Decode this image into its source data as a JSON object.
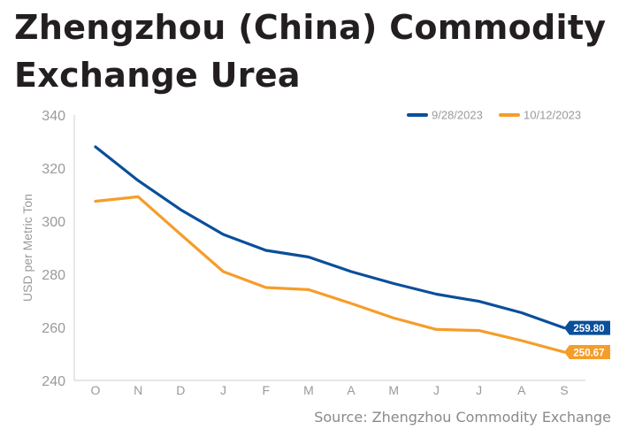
{
  "title": "Zhengzhou (China) Commodity Exchange Urea",
  "source": "Source: Zhengzhou Commodity Exchange",
  "colors": {
    "series_1": "#0a4f9a",
    "series_2": "#f59d2a",
    "axis_text": "#9a9a9a",
    "axis_line": "#cfcfcf"
  },
  "chart_data": {
    "type": "line",
    "title": "Zhengzhou (China) Commodity Exchange Urea",
    "xlabel": "",
    "ylabel": "USD per Metric Ton",
    "categories": [
      "O",
      "N",
      "D",
      "J",
      "F",
      "M",
      "A",
      "M",
      "J",
      "J",
      "A",
      "S"
    ],
    "yticks": [
      240,
      260,
      280,
      300,
      320,
      340
    ],
    "ylim": [
      240,
      340
    ],
    "grid": false,
    "legend_position": "top-right",
    "series": [
      {
        "name": "9/28/2023",
        "color": "#0a4f9a",
        "values": [
          328.0,
          315.3,
          304.3,
          295.0,
          289.0,
          286.5,
          281.0,
          276.5,
          272.5,
          269.8,
          265.5,
          259.8
        ],
        "end_label": "259.80"
      },
      {
        "name": "10/12/2023",
        "color": "#f59d2a",
        "values": [
          307.5,
          309.2,
          295.0,
          281.0,
          275.0,
          274.2,
          269.0,
          263.5,
          259.2,
          258.8,
          255.0,
          250.67
        ],
        "end_label": "250.67"
      }
    ]
  }
}
